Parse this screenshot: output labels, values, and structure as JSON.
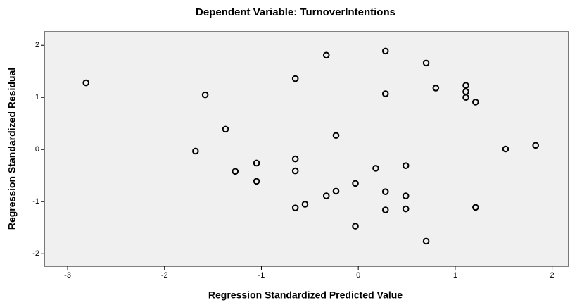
{
  "chart_data": {
    "type": "scatter",
    "title": "Dependent Variable: TurnoverIntentions",
    "x_label": "Regression Standardized Predicted Value",
    "y_label": "Regression Standardized Residual",
    "color": "#000000",
    "x": [
      -2.81,
      -1.58,
      -1.37,
      -1.68,
      -0.65,
      -0.33,
      0.28,
      0.7,
      0.8,
      1.11,
      1.11,
      1.11,
      1.21,
      0.28,
      -0.23,
      -0.65,
      -0.65,
      -1.05,
      -1.27,
      -1.05,
      0.18,
      0.49,
      -0.03,
      -0.23,
      -0.33,
      0.28,
      0.49,
      -0.55,
      -0.65,
      0.28,
      0.49,
      1.21,
      -0.03,
      0.7,
      1.52,
      1.83
    ],
    "values": [
      1.28,
      1.05,
      0.39,
      -0.03,
      1.36,
      1.81,
      1.89,
      1.66,
      1.18,
      1.23,
      1.11,
      1.0,
      0.91,
      1.07,
      0.27,
      -0.18,
      -0.41,
      -0.26,
      -0.42,
      -0.61,
      -0.36,
      -0.31,
      -0.65,
      -0.8,
      -0.89,
      -0.81,
      -0.89,
      -1.05,
      -1.12,
      -1.16,
      -1.14,
      -1.11,
      -1.47,
      -1.76,
      0.01,
      0.08
    ],
    "xlim": [
      -3.24,
      2.17
    ],
    "xticks": [
      -3,
      -2,
      -1,
      0,
      1,
      2
    ],
    "ylim": [
      -2.24,
      2.26
    ],
    "yticks": [
      -2,
      -1,
      0,
      1,
      2
    ]
  }
}
